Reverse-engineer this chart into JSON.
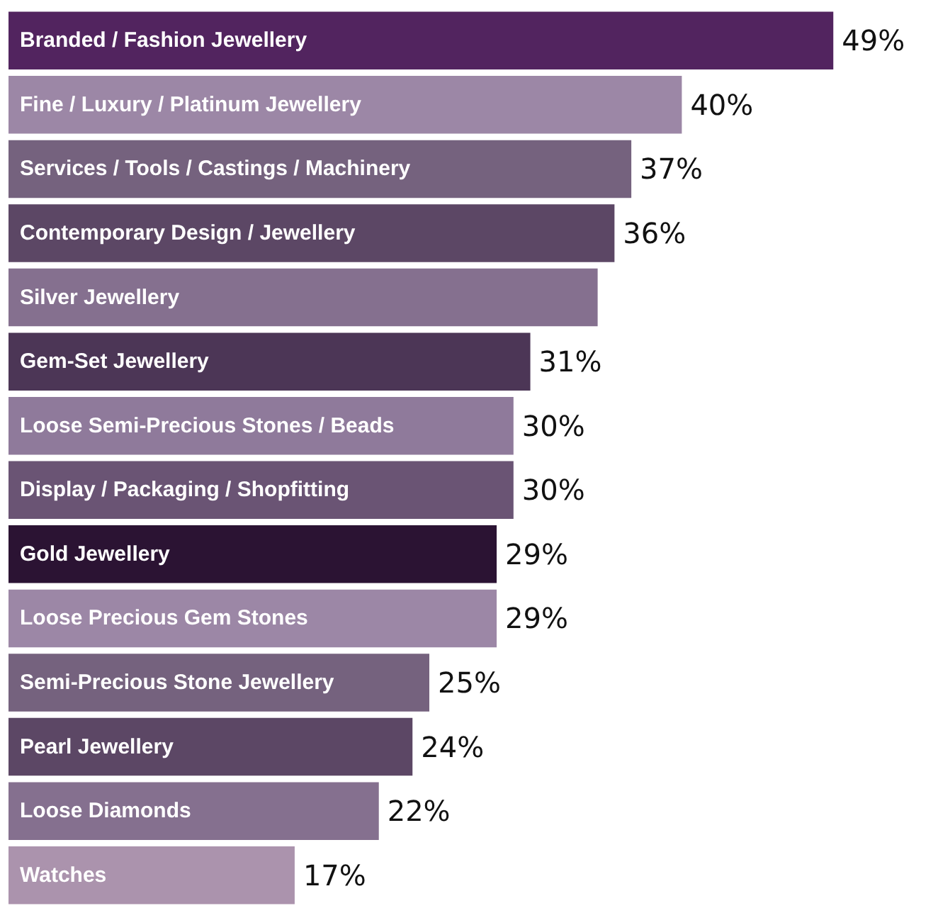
{
  "chart_data": {
    "type": "bar",
    "orientation": "horizontal",
    "categories": [
      "Branded / Fashion Jewellery",
      "Fine / Luxury / Platinum Jewellery",
      "Services / Tools / Castings / Machinery",
      "Contemporary Design / Jewellery",
      "Silver Jewellery",
      "Gem-Set Jewellery",
      "Loose Semi-Precious Stones / Beads",
      "Display / Packaging / Shopfitting",
      "Gold Jewellery",
      "Loose Precious Gem Stones",
      "Semi-Precious Stone Jewellery",
      "Pearl Jewellery",
      "Loose Diamonds",
      "Watches"
    ],
    "values": [
      49,
      40,
      37,
      36,
      35,
      31,
      30,
      30,
      29,
      29,
      25,
      24,
      22,
      17
    ],
    "value_labels": [
      "49%",
      "40%",
      "37%",
      "36%",
      null,
      "31%",
      "30%",
      "30%",
      "29%",
      "29%",
      "25%",
      "24%",
      "22%",
      "17%"
    ],
    "colors": [
      "#52245f",
      "#9c87a6",
      "#75627e",
      "#5c4765",
      "#85708f",
      "#4c3656",
      "#8f7a9b",
      "#6a5474",
      "#2b1333",
      "#9c87a6",
      "#75627e",
      "#5c4765",
      "#85708f",
      "#ab93ad"
    ]
  }
}
